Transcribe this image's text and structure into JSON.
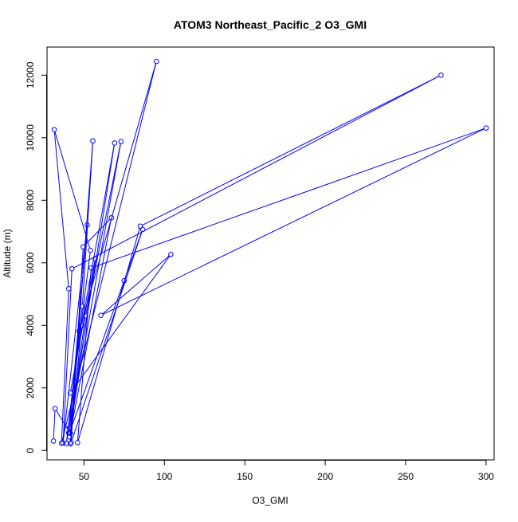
{
  "chart_data": {
    "type": "line",
    "title": "ATOM3 Northeast_Pacific_2 O3_GMI",
    "xlabel": "O3_GMI",
    "ylabel": "Altitude (m)",
    "xlim": [
      27,
      305
    ],
    "ylim": [
      -300,
      12900
    ],
    "xticks": [
      50,
      100,
      150,
      200,
      250,
      300
    ],
    "yticks": [
      0,
      2000,
      4000,
      6000,
      8000,
      10000,
      12000
    ],
    "grid": false,
    "color": "#0000ff",
    "marker": "open-circle",
    "series": [
      {
        "values": [
          {
            "x": 31.0,
            "y": 300
          },
          {
            "x": 32.0,
            "y": 1340
          },
          {
            "x": 41.5,
            "y": 550
          },
          {
            "x": 47.0,
            "y": 3820
          },
          {
            "x": 95.0,
            "y": 12440
          },
          {
            "x": 36.0,
            "y": 230
          },
          {
            "x": 40.5,
            "y": 5170
          },
          {
            "x": 31.5,
            "y": 10260
          },
          {
            "x": 54.0,
            "y": 6400
          },
          {
            "x": 39.0,
            "y": 220
          },
          {
            "x": 49.0,
            "y": 4610
          },
          {
            "x": 55.5,
            "y": 9900
          },
          {
            "x": 41.5,
            "y": 210
          },
          {
            "x": 48.5,
            "y": 3990
          },
          {
            "x": 69.0,
            "y": 9830
          },
          {
            "x": 40.5,
            "y": 560
          },
          {
            "x": 51.0,
            "y": 4300
          },
          {
            "x": 73.0,
            "y": 9880
          },
          {
            "x": 41.0,
            "y": 720
          },
          {
            "x": 52.0,
            "y": 7210
          },
          {
            "x": 37.0,
            "y": 240
          },
          {
            "x": 42.5,
            "y": 5810
          },
          {
            "x": 272.0,
            "y": 12000
          },
          {
            "x": 85.0,
            "y": 7170
          },
          {
            "x": 46.0,
            "y": 250
          },
          {
            "x": 54.5,
            "y": 5840
          },
          {
            "x": 300.0,
            "y": 10310
          },
          {
            "x": 60.5,
            "y": 4320
          },
          {
            "x": 104.0,
            "y": 6270
          },
          {
            "x": 41.5,
            "y": 1840
          },
          {
            "x": 57.0,
            "y": 6140
          },
          {
            "x": 41.0,
            "y": 430
          },
          {
            "x": 67.0,
            "y": 7440
          },
          {
            "x": 49.5,
            "y": 6510
          },
          {
            "x": 42.0,
            "y": 250
          },
          {
            "x": 86.5,
            "y": 7070
          },
          {
            "x": 75.0,
            "y": 5430
          },
          {
            "x": 41.0,
            "y": 570
          }
        ]
      }
    ]
  }
}
